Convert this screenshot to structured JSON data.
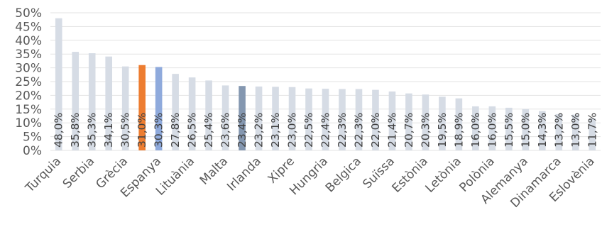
{
  "chart_data": {
    "type": "bar",
    "title": "",
    "xlabel": "",
    "ylabel": "",
    "ylim": [
      0,
      50
    ],
    "yticks": [
      "0%",
      "5%",
      "10%",
      "15%",
      "20%",
      "25%",
      "30%",
      "35%",
      "40%",
      "45%",
      "50%"
    ],
    "grid": true,
    "legend": "none",
    "default_color": "#d6dce5",
    "categories": [
      "Turquia",
      "",
      "Serbia",
      "",
      "Grècia",
      "",
      "Espanya",
      "",
      "Lituània",
      "",
      "Malta",
      "",
      "Irlanda",
      "",
      "Xipre",
      "",
      "Hungria",
      "",
      "Belgica",
      "",
      "Suïssa",
      "",
      "Estònia",
      "",
      "Letònia",
      "",
      "Polònia",
      "",
      "Alemanya",
      "",
      "Dinamarca",
      "",
      "Eslovènia"
    ],
    "values": [
      48.0,
      35.8,
      35.3,
      34.1,
      30.5,
      31.0,
      30.3,
      27.8,
      26.5,
      25.4,
      23.6,
      23.4,
      23.2,
      23.1,
      23.0,
      22.5,
      22.4,
      22.3,
      22.3,
      22.0,
      21.4,
      20.7,
      20.3,
      19.5,
      18.9,
      16.0,
      16.0,
      15.5,
      15.0,
      14.3,
      13.2,
      13.0,
      11.7
    ],
    "value_labels": [
      "48,0%",
      "35,8%",
      "35,3%",
      "34,1%",
      "30,5%",
      "31,0%",
      "30,3%",
      "27,8%",
      "26,5%",
      "25,4%",
      "23,6%",
      "23,4%",
      "23,2%",
      "23,1%",
      "23,0%",
      "22,5%",
      "22,4%",
      "22,3%",
      "22,3%",
      "22,0%",
      "21,4%",
      "20,7%",
      "20,3%",
      "19,5%",
      "18,9%",
      "16,0%",
      "16,0%",
      "15,5%",
      "15,0%",
      "14,3%",
      "13,2%",
      "13,0%",
      "11,7%"
    ],
    "highlights": [
      {
        "index": 5,
        "color": "#ed7d31"
      },
      {
        "index": 6,
        "color": "#8faadc"
      },
      {
        "index": 11,
        "color": "#8497b0"
      }
    ]
  }
}
